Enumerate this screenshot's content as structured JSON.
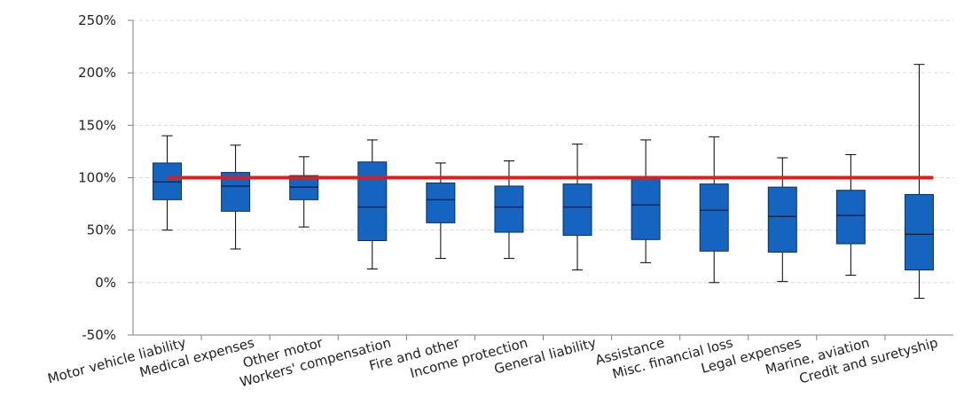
{
  "chart_data": {
    "type": "boxplot",
    "title": "",
    "xlabel": "",
    "ylabel": "",
    "ylim": [
      -50,
      250
    ],
    "yticks": [
      -50,
      0,
      50,
      100,
      150,
      200,
      250
    ],
    "ytick_labels": [
      "-50%",
      "0%",
      "50%",
      "100%",
      "150%",
      "200%",
      "250%"
    ],
    "grid": "horizontal dashed",
    "colors": {
      "box": "#1565c0",
      "box_edge": "#0b2f5a",
      "reference_line": "#e31b1b",
      "axis": "#7f7f7f",
      "grid": "#d9d9d9"
    },
    "reference_line": 100,
    "categories": [
      "Motor vehicle liability",
      "Medical expenses",
      "Other motor",
      "Workers' compensation",
      "Fire and other",
      "Income protection",
      "General liability",
      "Assistance",
      "Misc. financial loss",
      "Legal expenses",
      "Marine, aviation",
      "Credit and suretyship"
    ],
    "boxes": [
      {
        "min": 50,
        "q1": 79,
        "median": 96,
        "q3": 114,
        "max": 140
      },
      {
        "min": 32,
        "q1": 68,
        "median": 92,
        "q3": 105,
        "max": 131
      },
      {
        "min": 53,
        "q1": 79,
        "median": 91,
        "q3": 102,
        "max": 120
      },
      {
        "min": 13,
        "q1": 40,
        "median": 72,
        "q3": 115,
        "max": 136
      },
      {
        "min": 23,
        "q1": 57,
        "median": 79,
        "q3": 95,
        "max": 114
      },
      {
        "min": 23,
        "q1": 48,
        "median": 72,
        "q3": 92,
        "max": 116
      },
      {
        "min": 12,
        "q1": 45,
        "median": 72,
        "q3": 94,
        "max": 132
      },
      {
        "min": 19,
        "q1": 41,
        "median": 74,
        "q3": 99,
        "max": 136
      },
      {
        "min": 0,
        "q1": 30,
        "median": 69,
        "q3": 94,
        "max": 139
      },
      {
        "min": 1,
        "q1": 29,
        "median": 63,
        "q3": 91,
        "max": 119
      },
      {
        "min": 7,
        "q1": 37,
        "median": 64,
        "q3": 88,
        "max": 122
      },
      {
        "min": -15,
        "q1": 12,
        "median": 46,
        "q3": 84,
        "max": 208
      }
    ]
  }
}
